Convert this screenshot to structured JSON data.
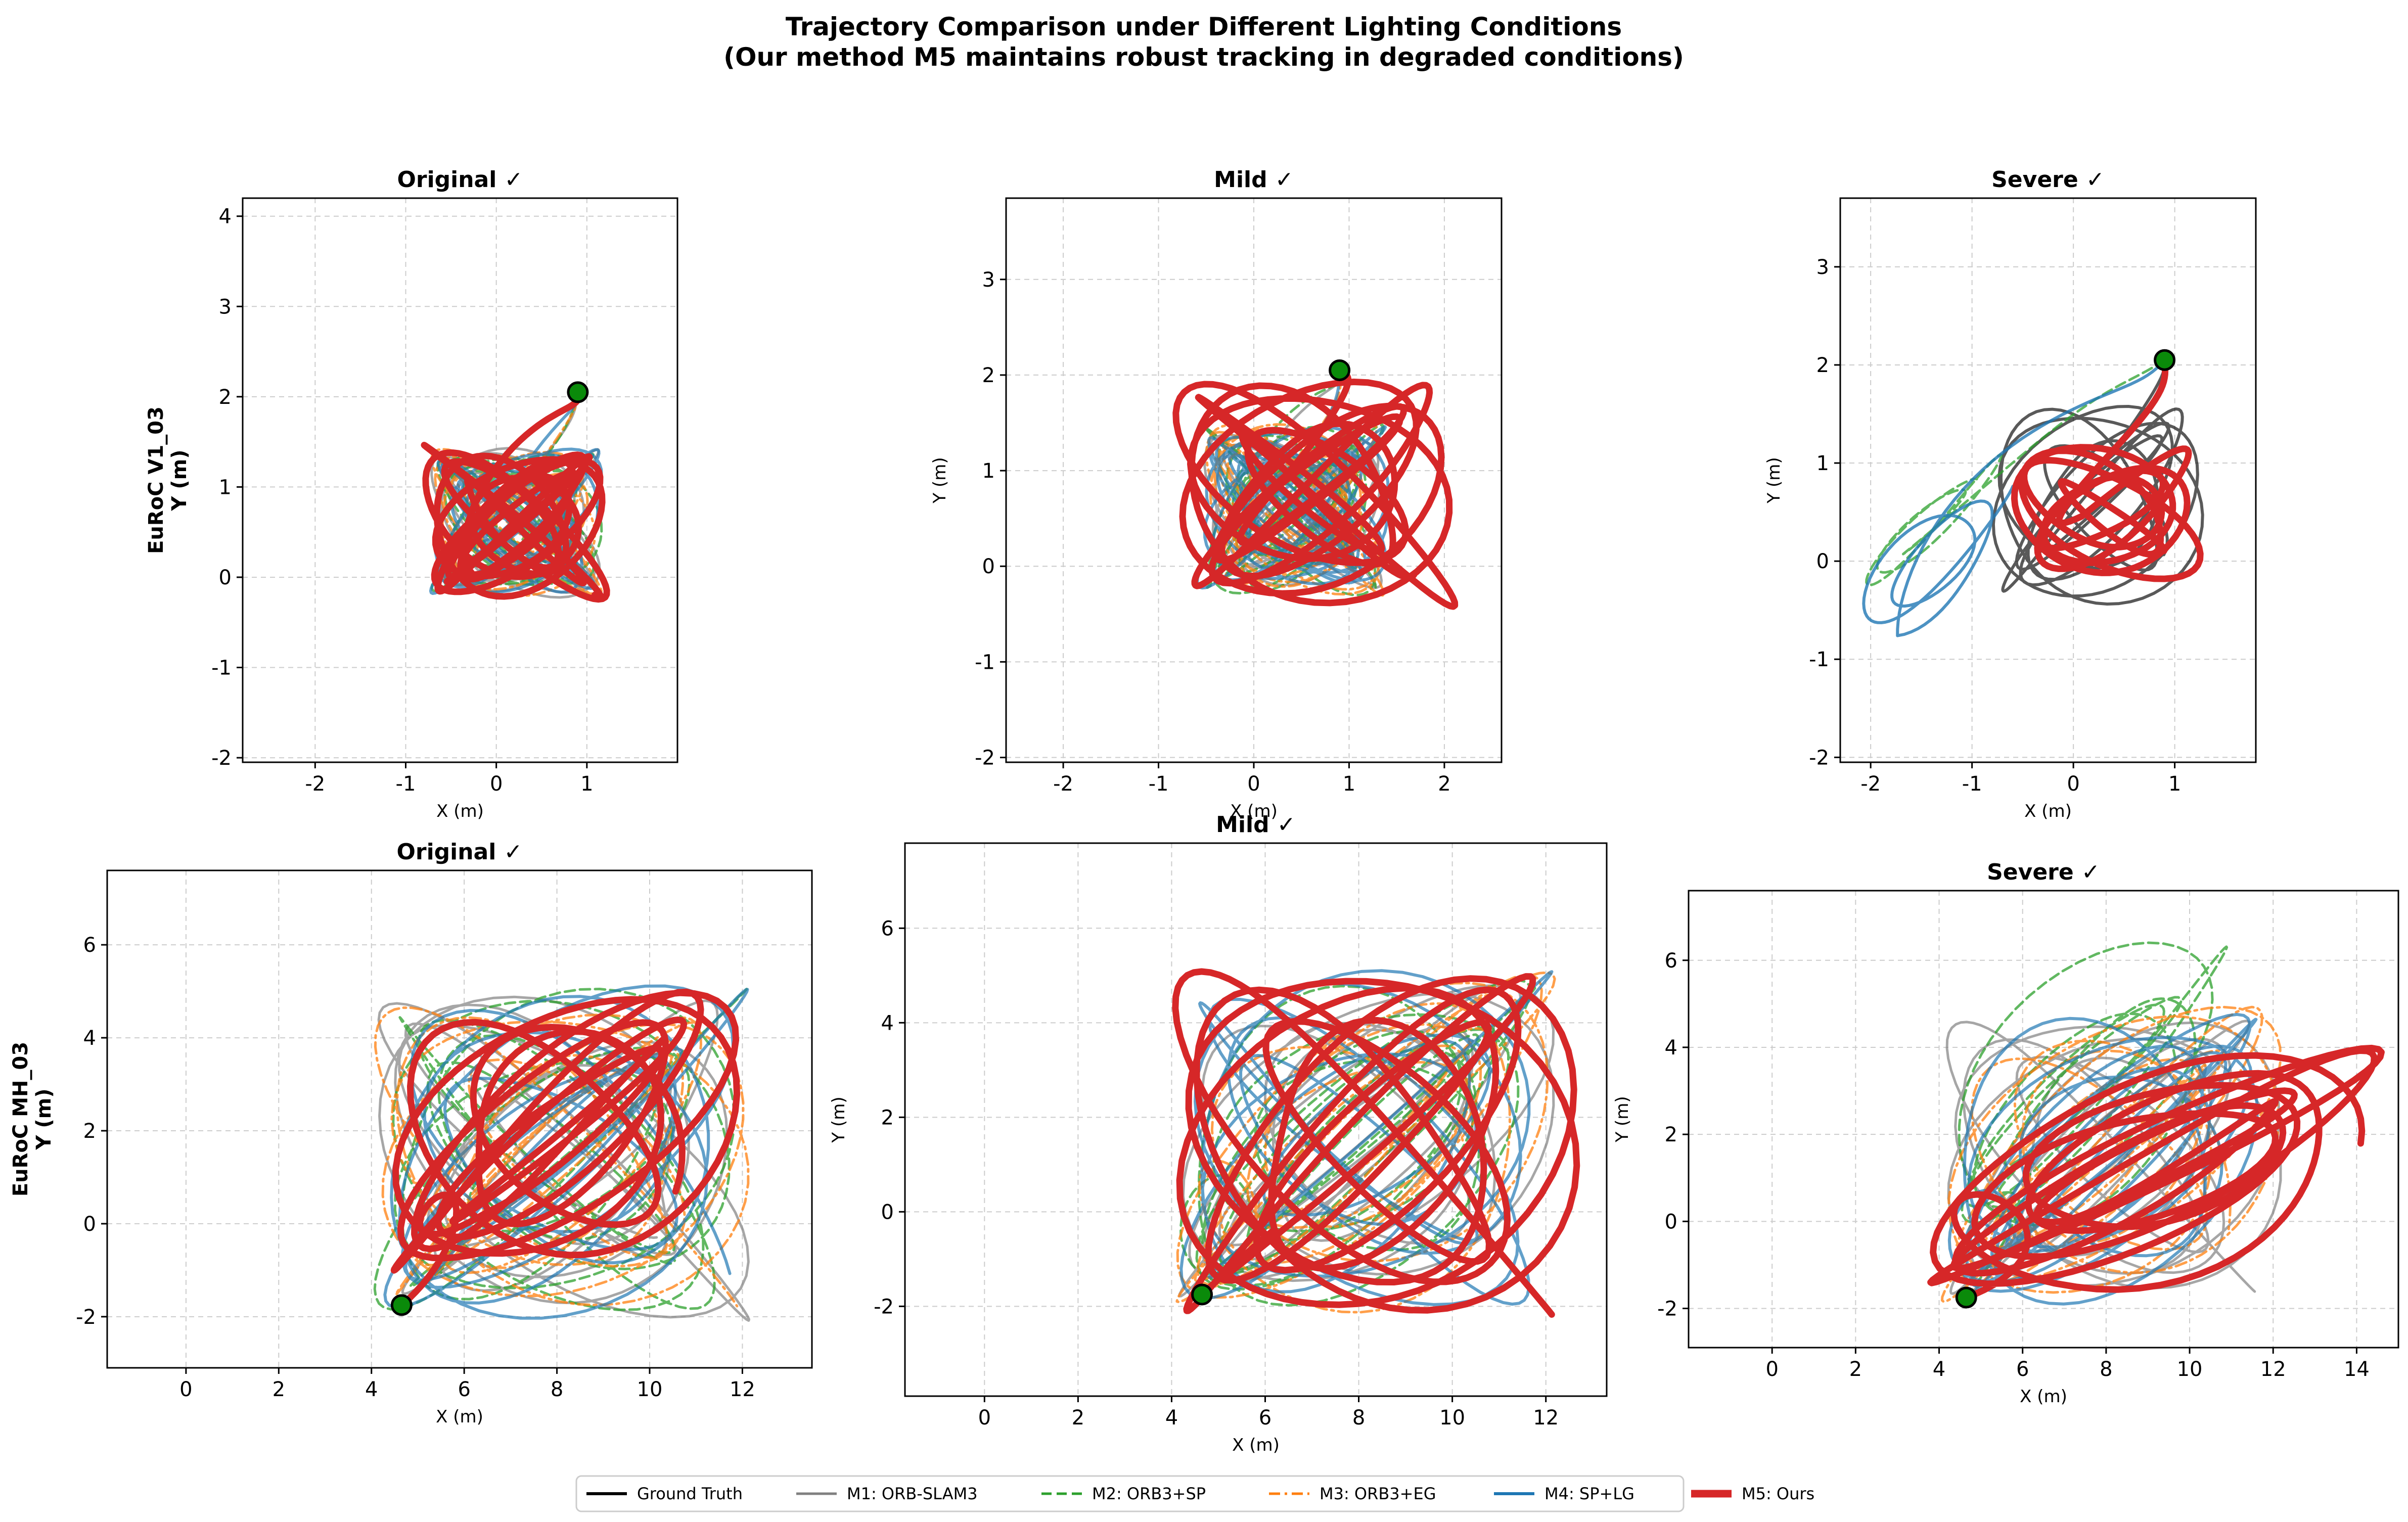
{
  "figure": {
    "title_line1": "Trajectory Comparison under Different Lighting Conditions",
    "title_line2": "(Our method M5 maintains robust tracking in degraded conditions)"
  },
  "colors": {
    "gt": "#000000",
    "m1": "#808080",
    "m2": "#2ca02c",
    "m3": "#ff7f0e",
    "m4": "#1f77b4",
    "m5": "#d62728",
    "start_marker": "#0a8a0a"
  },
  "legend": [
    {
      "key": "gt",
      "label": "Ground Truth",
      "style": "solid"
    },
    {
      "key": "m1",
      "label": "M1: ORB-SLAM3",
      "style": "solid"
    },
    {
      "key": "m2",
      "label": "M2: ORB3+SP",
      "style": "dashed"
    },
    {
      "key": "m3",
      "label": "M3: ORB3+EG",
      "style": "dashdot"
    },
    {
      "key": "m4",
      "label": "M4: SP+LG",
      "style": "solid"
    },
    {
      "key": "m5",
      "label": "M5: Ours",
      "style": "solid-thick"
    }
  ],
  "chart_data": [
    {
      "type": "line",
      "row": "EuRoC V1_03",
      "title": "Original ✓",
      "xlabel": "X (m)",
      "ylabel": "EuRoC V1_03\nY (m)",
      "xlim": [
        -2.8,
        2.0
      ],
      "ylim": [
        -2.05,
        4.2
      ],
      "xticks": [
        -2,
        -1,
        0,
        1
      ],
      "yticks": [
        -2,
        -1,
        0,
        1,
        2,
        3,
        4
      ],
      "start_point": [
        0.9,
        2.05
      ],
      "series": [
        {
          "key": "m1",
          "alpha": 0.7,
          "seed": 11,
          "xc": 0.2,
          "yc": 0.6,
          "rx": 0.7,
          "ry": 0.6,
          "loops": 14
        },
        {
          "key": "m2",
          "alpha": 0.75,
          "seed": 12,
          "xc": 0.2,
          "yc": 0.6,
          "rx": 0.7,
          "ry": 0.6,
          "loops": 14
        },
        {
          "key": "m3",
          "alpha": 0.75,
          "seed": 13,
          "xc": 0.2,
          "yc": 0.6,
          "rx": 0.7,
          "ry": 0.6,
          "loops": 14
        },
        {
          "key": "m4",
          "alpha": 0.7,
          "seed": 14,
          "xc": 0.2,
          "yc": 0.6,
          "rx": 0.7,
          "ry": 0.6,
          "loops": 14
        },
        {
          "key": "m5",
          "alpha": 1.0,
          "seed": 15,
          "xc": 0.2,
          "yc": 0.6,
          "rx": 0.75,
          "ry": 0.65,
          "loops": 14
        }
      ]
    },
    {
      "type": "line",
      "row": "EuRoC V1_03",
      "title": "Mild ✓",
      "xlabel": "X (m)",
      "ylabel": "Y (m)",
      "xlim": [
        -2.6,
        2.6
      ],
      "ylim": [
        -2.05,
        3.85
      ],
      "xticks": [
        -2,
        -1,
        0,
        1,
        2
      ],
      "yticks": [
        -2,
        -1,
        0,
        1,
        2,
        3
      ],
      "start_point": [
        0.9,
        2.05
      ],
      "series": [
        {
          "key": "m1",
          "alpha": 0.7,
          "seed": 21,
          "xc": 0.4,
          "yc": 0.6,
          "rx": 0.7,
          "ry": 0.65,
          "loops": 14
        },
        {
          "key": "m2",
          "alpha": 0.75,
          "seed": 22,
          "xc": 0.4,
          "yc": 0.6,
          "rx": 0.7,
          "ry": 0.65,
          "loops": 14
        },
        {
          "key": "m3",
          "alpha": 0.75,
          "seed": 23,
          "xc": 0.4,
          "yc": 0.6,
          "rx": 0.7,
          "ry": 0.65,
          "loops": 14
        },
        {
          "key": "m4",
          "alpha": 0.7,
          "seed": 24,
          "xc": 0.4,
          "yc": 0.6,
          "rx": 0.75,
          "ry": 0.65,
          "loops": 14
        },
        {
          "key": "m5",
          "alpha": 1.0,
          "seed": 25,
          "xc": 0.6,
          "yc": 0.8,
          "rx": 1.1,
          "ry": 0.9,
          "loops": 12
        }
      ]
    },
    {
      "type": "line",
      "row": "EuRoC V1_03",
      "title": "Severe ✓",
      "xlabel": "X (m)",
      "ylabel": "Y (m)",
      "xlim": [
        -2.3,
        1.8
      ],
      "ylim": [
        -2.05,
        3.7
      ],
      "xticks": [
        -2,
        -1,
        0,
        1
      ],
      "yticks": [
        -2,
        -1,
        0,
        1,
        2,
        3
      ],
      "start_point": [
        0.9,
        2.05
      ],
      "series": [
        {
          "key": "gt",
          "alpha": 0.65,
          "seed": 31,
          "xc": 0.2,
          "yc": 0.6,
          "rx": 0.8,
          "ry": 0.8,
          "loops": 9
        },
        {
          "key": "m2",
          "alpha": 0.75,
          "seed": 32,
          "xc": -1.4,
          "yc": 0.4,
          "rx": 0.5,
          "ry": 0.5,
          "loops": 3
        },
        {
          "key": "m4",
          "alpha": 0.8,
          "seed": 34,
          "xc": -1.4,
          "yc": 0.0,
          "rx": 0.6,
          "ry": 0.6,
          "loops": 3
        },
        {
          "key": "m5",
          "alpha": 1.0,
          "seed": 35,
          "xc": 0.3,
          "yc": 0.5,
          "rx": 0.7,
          "ry": 0.5,
          "loops": 8
        }
      ]
    },
    {
      "type": "line",
      "row": "EuRoC MH_03",
      "title": "Original ✓",
      "xlabel": "X (m)",
      "ylabel": "EuRoC MH_03\nY (m)",
      "xlim": [
        -1.7,
        13.5
      ],
      "ylim": [
        -3.1,
        7.6
      ],
      "xticks": [
        0,
        2,
        4,
        6,
        8,
        10,
        12
      ],
      "yticks": [
        -2,
        0,
        2,
        4,
        6
      ],
      "start_point": [
        4.65,
        -1.75
      ],
      "series": [
        {
          "key": "m1",
          "alpha": 0.7,
          "seed": 41,
          "xc": 8.0,
          "yc": 1.5,
          "rx": 3.0,
          "ry": 2.6,
          "loops": 10
        },
        {
          "key": "m2",
          "alpha": 0.75,
          "seed": 42,
          "xc": 8.0,
          "yc": 1.5,
          "rx": 3.0,
          "ry": 2.6,
          "loops": 10
        },
        {
          "key": "m3",
          "alpha": 0.75,
          "seed": 43,
          "xc": 8.0,
          "yc": 1.5,
          "rx": 3.0,
          "ry": 2.6,
          "loops": 10
        },
        {
          "key": "m4",
          "alpha": 0.7,
          "seed": 44,
          "xc": 8.0,
          "yc": 1.5,
          "rx": 3.0,
          "ry": 2.6,
          "loops": 10
        },
        {
          "key": "m5",
          "alpha": 1.0,
          "seed": 45,
          "xc": 8.0,
          "yc": 2.0,
          "rx": 2.8,
          "ry": 2.4,
          "loops": 10
        }
      ]
    },
    {
      "type": "line",
      "row": "EuRoC MH_03",
      "title": "Mild ✓",
      "xlabel": "X (m)",
      "ylabel": "Y (m)",
      "xlim": [
        -1.7,
        13.3
      ],
      "ylim": [
        -3.9,
        7.8
      ],
      "xticks": [
        0,
        2,
        4,
        6,
        8,
        10,
        12
      ],
      "yticks": [
        -2,
        0,
        2,
        4,
        6
      ],
      "start_point": [
        4.65,
        -1.75
      ],
      "series": [
        {
          "key": "m1",
          "alpha": 0.7,
          "seed": 51,
          "xc": 8.0,
          "yc": 1.5,
          "rx": 3.0,
          "ry": 2.6,
          "loops": 10
        },
        {
          "key": "m2",
          "alpha": 0.75,
          "seed": 52,
          "xc": 8.0,
          "yc": 1.5,
          "rx": 3.0,
          "ry": 2.6,
          "loops": 10
        },
        {
          "key": "m3",
          "alpha": 0.75,
          "seed": 53,
          "xc": 8.0,
          "yc": 1.5,
          "rx": 3.0,
          "ry": 2.6,
          "loops": 10
        },
        {
          "key": "m4",
          "alpha": 0.7,
          "seed": 54,
          "xc": 8.0,
          "yc": 1.5,
          "rx": 3.0,
          "ry": 2.6,
          "loops": 10
        },
        {
          "key": "m5",
          "alpha": 1.0,
          "seed": 55,
          "xc": 8.2,
          "yc": 1.5,
          "rx": 3.2,
          "ry": 3.0,
          "loops": 10
        }
      ]
    },
    {
      "type": "line",
      "row": "EuRoC MH_03",
      "title": "Severe ✓",
      "xlabel": "X (m)",
      "ylabel": "Y (m)",
      "xlim": [
        -2.0,
        15.0
      ],
      "ylim": [
        -2.9,
        7.6
      ],
      "xticks": [
        0,
        2,
        4,
        6,
        8,
        10,
        12,
        14
      ],
      "yticks": [
        -2,
        0,
        2,
        4,
        6
      ],
      "start_point": [
        4.65,
        -1.75
      ],
      "series": [
        {
          "key": "m1",
          "alpha": 0.7,
          "seed": 61,
          "xc": 8.0,
          "yc": 1.5,
          "rx": 3.0,
          "ry": 2.6,
          "loops": 10
        },
        {
          "key": "m2",
          "alpha": 0.75,
          "seed": 62,
          "xc": 7.5,
          "yc": 3.0,
          "rx": 2.6,
          "ry": 2.5,
          "loops": 6
        },
        {
          "key": "m3",
          "alpha": 0.75,
          "seed": 63,
          "xc": 8.0,
          "yc": 1.5,
          "rx": 3.0,
          "ry": 2.6,
          "loops": 10
        },
        {
          "key": "m4",
          "alpha": 0.7,
          "seed": 64,
          "xc": 8.0,
          "yc": 1.5,
          "rx": 3.0,
          "ry": 2.6,
          "loops": 10
        },
        {
          "key": "m5",
          "alpha": 1.0,
          "seed": 65,
          "xc": 9.0,
          "yc": 1.2,
          "rx": 4.0,
          "ry": 2.0,
          "loops": 9
        }
      ]
    }
  ]
}
